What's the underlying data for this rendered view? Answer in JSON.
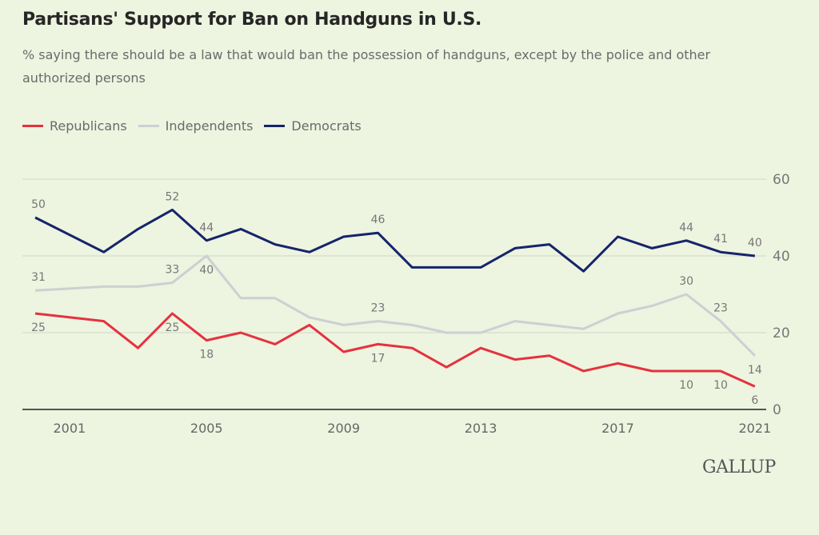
{
  "chart_data": {
    "type": "line",
    "title": "Partisans' Support for Ban on Handguns in U.S.",
    "subtitle": "% saying there should be a law that would ban the possession of handguns, except by the police and other authorized persons",
    "xlabel": "",
    "ylabel": "",
    "x": [
      2000,
      2002,
      2003,
      2004,
      2005,
      2006,
      2007,
      2008,
      2009,
      2010,
      2011,
      2012,
      2013,
      2014,
      2015,
      2016,
      2017,
      2018,
      2019,
      2020,
      2021
    ],
    "x_ticks": [
      "2001",
      "2005",
      "2009",
      "2013",
      "2017",
      "2021"
    ],
    "y_ticks": [
      "0",
      "20",
      "40",
      "60"
    ],
    "xlim": [
      2000,
      2021
    ],
    "ylim": [
      0,
      60
    ],
    "grid": true,
    "legend": "top-left",
    "series": [
      {
        "name": "Republicans",
        "color": "#e5323e",
        "values": [
          25,
          23,
          16,
          25,
          18,
          20,
          17,
          22,
          15,
          17,
          16,
          11,
          16,
          13,
          14,
          10,
          12,
          10,
          10,
          10,
          6
        ],
        "labels": {
          "2000": "25",
          "2004": "25",
          "2005": "18",
          "2010": "17",
          "2019": "10",
          "2020": "10",
          "2021": "6"
        },
        "label_pos": "below"
      },
      {
        "name": "Independents",
        "color": "#cfcfd2",
        "values": [
          31,
          32,
          32,
          33,
          40,
          29,
          29,
          24,
          22,
          23,
          22,
          20,
          20,
          23,
          22,
          21,
          25,
          27,
          30,
          23,
          14
        ],
        "labels": {
          "2000": "31",
          "2004": "33",
          "2005": "40",
          "2010": "23",
          "2019": "30",
          "2020": "23",
          "2021": "14"
        },
        "label_pos": "above"
      },
      {
        "name": "Democrats",
        "color": "#15246a",
        "values": [
          50,
          41,
          47,
          52,
          44,
          47,
          43,
          41,
          45,
          46,
          37,
          37,
          37,
          42,
          43,
          36,
          45,
          42,
          44,
          41,
          40
        ],
        "labels": {
          "2000": "50",
          "2004": "52",
          "2005": "44",
          "2010": "46",
          "2019": "44",
          "2020": "41",
          "2021": "40"
        },
        "label_pos": "above"
      }
    ]
  },
  "logo": "GALLUP"
}
